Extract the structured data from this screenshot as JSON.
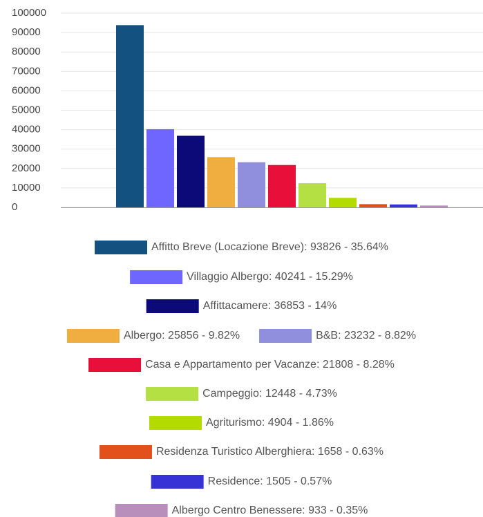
{
  "chart_data": {
    "type": "bar",
    "categories": [
      null
    ],
    "series": [
      {
        "name": "Affitto Breve (Locazione Breve): 93826 - 35.64%",
        "color": "#135181",
        "values": [
          93826
        ]
      },
      {
        "name": "Villaggio Albergo: 40241 - 15.29%",
        "color": "#6f66ff",
        "values": [
          40241
        ]
      },
      {
        "name": "Affittacamere: 36853 - 14%",
        "color": "#0b0a78",
        "values": [
          36853
        ]
      },
      {
        "name": "Albergo: 25856 - 9.82%",
        "color": "#f0ae41",
        "values": [
          25856
        ]
      },
      {
        "name": "B&B: 23232 - 8.82%",
        "color": "#8f8fde",
        "values": [
          23232
        ]
      },
      {
        "name": "Casa e Appartamento per Vacanze: 21808 - 8.28%",
        "color": "#e8103a",
        "values": [
          21808
        ]
      },
      {
        "name": "Campeggio: 12448 - 4.73%",
        "color": "#b5e043",
        "values": [
          12448
        ]
      },
      {
        "name": "Agriturismo: 4904 - 1.86%",
        "color": "#b3db00",
        "values": [
          4904
        ]
      },
      {
        "name": "Residenza Turistico Alberghiera: 1658 - 0.63%",
        "color": "#e2501c",
        "values": [
          1658
        ]
      },
      {
        "name": "Residence: 1505 - 0.57%",
        "color": "#3732d6",
        "values": [
          1505
        ]
      },
      {
        "name": "Albergo Centro Benessere: 933 - 0.35%",
        "color": "#b88fba",
        "values": [
          933
        ]
      }
    ],
    "ylim": [
      0,
      100000
    ],
    "yticks": [
      0,
      10000,
      20000,
      30000,
      40000,
      50000,
      60000,
      70000,
      80000,
      90000,
      100000
    ],
    "grid": true
  }
}
